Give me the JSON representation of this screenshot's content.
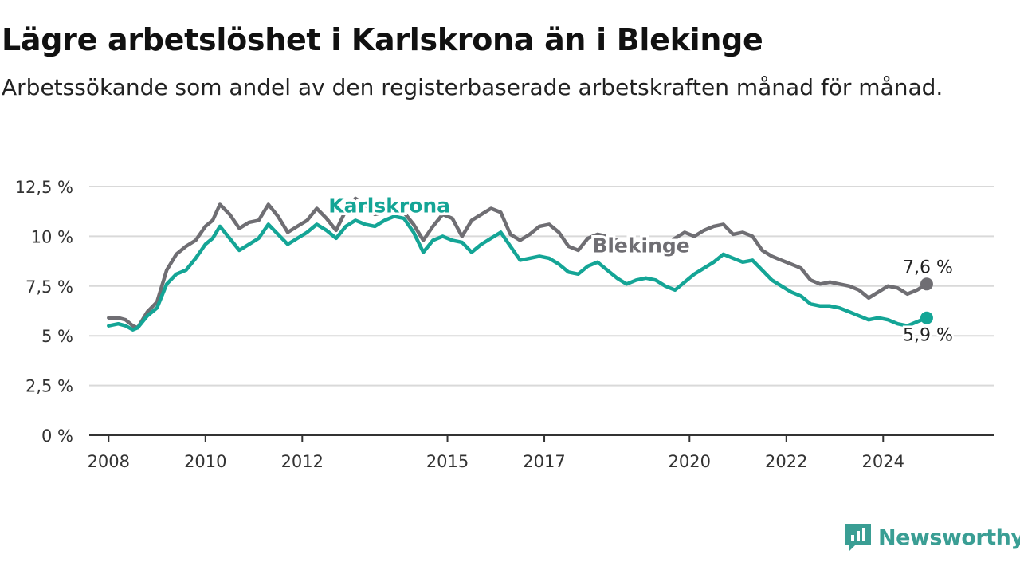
{
  "title": "Lägre arbetslöshet i Karlskrona än i Blekinge",
  "subtitle": "Arbetssökande som andel av den registerbaserade arbetskraften månad för månad.",
  "brand": {
    "name": "Newsworthy",
    "icon": "newsworthy-logo-icon",
    "color": "#3a9e94"
  },
  "chart_data": {
    "type": "line",
    "title": "Lägre arbetslöshet i Karlskrona än i Blekinge",
    "subtitle": "Arbetssökande som andel av den registerbaserade arbetskraften månad för månad.",
    "xlabel": "",
    "ylabel": "",
    "xlim": [
      2007.6,
      2026.3
    ],
    "ylim": [
      0,
      12.5
    ],
    "yticks": [
      0,
      2.5,
      5,
      7.5,
      10,
      12.5
    ],
    "ytick_labels": [
      "0 %",
      "2,5 %",
      "5 %",
      "7,5 %",
      "10 %",
      "12,5 %"
    ],
    "xticks": [
      2008,
      2010,
      2012,
      2015,
      2017,
      2020,
      2022,
      2024
    ],
    "xtick_labels": [
      "2008",
      "2010",
      "2012",
      "2015",
      "2017",
      "2020",
      "2022",
      "2024"
    ],
    "grid": true,
    "series": [
      {
        "name": "Blekinge",
        "color": "#6f6e73",
        "end_label": "7,6 %",
        "x": [
          2008.0,
          2008.2,
          2008.35,
          2008.5,
          2008.6,
          2008.8,
          2009.0,
          2009.2,
          2009.4,
          2009.6,
          2009.8,
          2010.0,
          2010.15,
          2010.3,
          2010.5,
          2010.7,
          2010.9,
          2011.1,
          2011.3,
          2011.5,
          2011.7,
          2011.9,
          2012.1,
          2012.3,
          2012.5,
          2012.7,
          2012.9,
          2013.1,
          2013.3,
          2013.5,
          2013.7,
          2013.9,
          2014.1,
          2014.3,
          2014.5,
          2014.7,
          2014.9,
          2015.1,
          2015.3,
          2015.5,
          2015.7,
          2015.9,
          2016.1,
          2016.3,
          2016.5,
          2016.7,
          2016.9,
          2017.1,
          2017.3,
          2017.5,
          2017.7,
          2017.9,
          2018.1,
          2018.3,
          2018.5,
          2018.7,
          2018.9,
          2019.1,
          2019.3,
          2019.5,
          2019.7,
          2019.9,
          2020.1,
          2020.3,
          2020.5,
          2020.7,
          2020.9,
          2021.1,
          2021.3,
          2021.5,
          2021.7,
          2021.9,
          2022.1,
          2022.3,
          2022.5,
          2022.7,
          2022.9,
          2023.1,
          2023.3,
          2023.5,
          2023.7,
          2023.9,
          2024.1,
          2024.3,
          2024.5,
          2024.7,
          2024.9
        ],
        "values": [
          5.9,
          5.9,
          5.8,
          5.5,
          5.4,
          6.2,
          6.7,
          8.3,
          9.1,
          9.5,
          9.8,
          10.5,
          10.8,
          11.6,
          11.1,
          10.4,
          10.7,
          10.8,
          11.6,
          11.0,
          10.2,
          10.5,
          10.8,
          11.4,
          10.9,
          10.3,
          11.3,
          11.9,
          11.6,
          11.1,
          11.2,
          11.5,
          11.2,
          10.6,
          9.8,
          10.5,
          11.1,
          10.9,
          10.0,
          10.8,
          11.1,
          11.4,
          11.2,
          10.1,
          9.8,
          10.1,
          10.5,
          10.6,
          10.2,
          9.5,
          9.3,
          9.9,
          10.1,
          10.0,
          9.8,
          9.5,
          9.6,
          9.8,
          9.7,
          9.5,
          9.9,
          10.2,
          10.0,
          10.3,
          10.5,
          10.6,
          10.1,
          10.2,
          10.0,
          9.3,
          9.0,
          8.8,
          8.6,
          8.4,
          7.8,
          7.6,
          7.7,
          7.6,
          7.5,
          7.3,
          6.9,
          7.2,
          7.5,
          7.4,
          7.1,
          7.3,
          7.6
        ]
      },
      {
        "name": "Karlskrona",
        "color": "#14a596",
        "end_label": "5,9 %",
        "x": [
          2008.0,
          2008.2,
          2008.35,
          2008.5,
          2008.6,
          2008.8,
          2009.0,
          2009.2,
          2009.4,
          2009.6,
          2009.8,
          2010.0,
          2010.15,
          2010.3,
          2010.5,
          2010.7,
          2010.9,
          2011.1,
          2011.3,
          2011.5,
          2011.7,
          2011.9,
          2012.1,
          2012.3,
          2012.5,
          2012.7,
          2012.9,
          2013.1,
          2013.3,
          2013.5,
          2013.7,
          2013.9,
          2014.1,
          2014.3,
          2014.5,
          2014.7,
          2014.9,
          2015.1,
          2015.3,
          2015.5,
          2015.7,
          2015.9,
          2016.1,
          2016.3,
          2016.5,
          2016.7,
          2016.9,
          2017.1,
          2017.3,
          2017.5,
          2017.7,
          2017.9,
          2018.1,
          2018.3,
          2018.5,
          2018.7,
          2018.9,
          2019.1,
          2019.3,
          2019.5,
          2019.7,
          2019.9,
          2020.1,
          2020.3,
          2020.5,
          2020.7,
          2020.9,
          2021.1,
          2021.3,
          2021.5,
          2021.7,
          2021.9,
          2022.1,
          2022.3,
          2022.5,
          2022.7,
          2022.9,
          2023.1,
          2023.3,
          2023.5,
          2023.7,
          2023.9,
          2024.1,
          2024.3,
          2024.5,
          2024.7,
          2024.9
        ],
        "values": [
          5.5,
          5.6,
          5.5,
          5.3,
          5.4,
          6.0,
          6.4,
          7.6,
          8.1,
          8.3,
          8.9,
          9.6,
          9.9,
          10.5,
          9.9,
          9.3,
          9.6,
          9.9,
          10.6,
          10.1,
          9.6,
          9.9,
          10.2,
          10.6,
          10.3,
          9.9,
          10.5,
          10.8,
          10.6,
          10.5,
          10.8,
          11.0,
          10.9,
          10.2,
          9.2,
          9.8,
          10.0,
          9.8,
          9.7,
          9.2,
          9.6,
          9.9,
          10.2,
          9.5,
          8.8,
          8.9,
          9.0,
          8.9,
          8.6,
          8.2,
          8.1,
          8.5,
          8.7,
          8.3,
          7.9,
          7.6,
          7.8,
          7.9,
          7.8,
          7.5,
          7.3,
          7.7,
          8.1,
          8.4,
          8.7,
          9.1,
          8.9,
          8.7,
          8.8,
          8.3,
          7.8,
          7.5,
          7.2,
          7.0,
          6.6,
          6.5,
          6.5,
          6.4,
          6.2,
          6.0,
          5.8,
          5.9,
          5.8,
          5.6,
          5.5,
          5.7,
          5.9
        ]
      }
    ],
    "annotations": [
      {
        "text": "Karlskrona",
        "x": 2013.8,
        "y": 11.2,
        "color": "#14a596"
      },
      {
        "text": "Blekinge",
        "x": 2019.0,
        "y": 9.2,
        "color": "#6f6e73"
      }
    ],
    "legend": "none"
  }
}
